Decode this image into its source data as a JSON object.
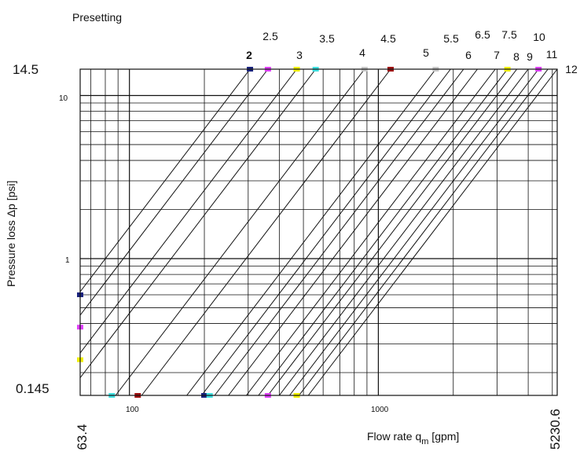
{
  "chart_data": {
    "type": "line",
    "title": "Presetting",
    "ylabel": "Pressure loss Δp [psi]",
    "xlabel_main": "Flow rate q",
    "xlabel_sub": "m",
    "xlabel_unit": " [gpm]",
    "x_scale": "log",
    "y_scale": "log",
    "xlim": [
      63.4,
      5230.6
    ],
    "ylim": [
      0.145,
      14.5
    ],
    "x_range_labels": [
      "63.4",
      "5230.6"
    ],
    "y_range_labels": [
      "0.145",
      "14.5"
    ],
    "x_ticks": [
      {
        "value": 100,
        "label": "100"
      },
      {
        "value": 1000,
        "label": "1000"
      }
    ],
    "y_ticks": [
      {
        "value": 1,
        "label": "1"
      },
      {
        "value": 10,
        "label": "10"
      }
    ],
    "grid": true,
    "series": [
      {
        "name": "2",
        "q_at_14_5": 305
      },
      {
        "name": "2.5",
        "q_at_14_5": 360
      },
      {
        "name": "3",
        "q_at_14_5": 470
      },
      {
        "name": "3.5",
        "q_at_14_5": 560
      },
      {
        "name": "4",
        "q_at_14_5": 880
      },
      {
        "name": "4.5",
        "q_at_14_5": 1120
      },
      {
        "name": "5",
        "q_at_14_5": 1700
      },
      {
        "name": "5.5",
        "q_at_14_5": 1950
      },
      {
        "name": "6",
        "q_at_14_5": 2200
      },
      {
        "name": "6.5",
        "q_at_14_5": 2500
      },
      {
        "name": "7",
        "q_at_14_5": 2950
      },
      {
        "name": "7.5",
        "q_at_14_5": 3300
      },
      {
        "name": "8",
        "q_at_14_5": 3600
      },
      {
        "name": "9",
        "q_at_14_5": 4000
      },
      {
        "name": "10",
        "q_at_14_5": 4400
      },
      {
        "name": "11",
        "q_at_14_5": 4800
      },
      {
        "name": "12",
        "q_at_14_5": 5230.6
      }
    ],
    "markers": [
      {
        "x": 305,
        "y": 14.5,
        "color": "#1a237e"
      },
      {
        "x": 360,
        "y": 14.5,
        "color": "#e040fb"
      },
      {
        "x": 470,
        "y": 14.5,
        "color": "#f0f000"
      },
      {
        "x": 560,
        "y": 14.5,
        "color": "#40e0e0"
      },
      {
        "x": 880,
        "y": 14.5,
        "color": "#c8c8c8"
      },
      {
        "x": 1120,
        "y": 14.5,
        "color": "#a01010"
      },
      {
        "x": 1700,
        "y": 14.5,
        "color": "#c8c8c8"
      },
      {
        "x": 3300,
        "y": 14.5,
        "color": "#f0f000"
      },
      {
        "x": 4400,
        "y": 14.5,
        "color": "#e040fb"
      },
      {
        "x": 63.4,
        "y": 0.6,
        "color": "#1a237e"
      },
      {
        "x": 63.4,
        "y": 0.38,
        "color": "#e040fb"
      },
      {
        "x": 63.4,
        "y": 0.24,
        "color": "#f0f000"
      },
      {
        "x": 85,
        "y": 0.145,
        "color": "#40e0e0"
      },
      {
        "x": 108,
        "y": 0.145,
        "color": "#a01010"
      },
      {
        "x": 200,
        "y": 0.145,
        "color": "#1a237e"
      },
      {
        "x": 210,
        "y": 0.145,
        "color": "#40e0e0"
      },
      {
        "x": 360,
        "y": 0.145,
        "color": "#e040fb"
      },
      {
        "x": 470,
        "y": 0.145,
        "color": "#f0f000"
      }
    ]
  }
}
